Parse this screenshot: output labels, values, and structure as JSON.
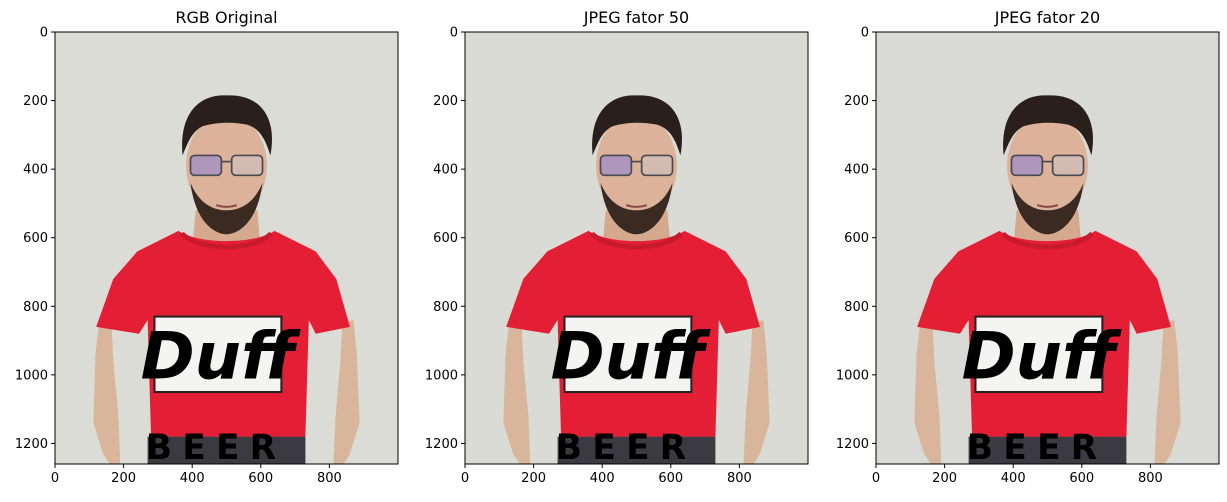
{
  "chart_data": [
    {
      "type": "image",
      "title": "RGB Original",
      "xlim": [
        0,
        1000
      ],
      "ylim": [
        1260,
        0
      ],
      "xticks": [
        0,
        200,
        400,
        600,
        800
      ],
      "yticks": [
        0,
        200,
        400,
        600,
        800,
        1000,
        1200
      ],
      "background": "#dcdcd6"
    },
    {
      "type": "image",
      "title": "JPEG fator 50",
      "xlim": [
        0,
        1000
      ],
      "ylim": [
        1260,
        0
      ],
      "xticks": [
        0,
        200,
        400,
        600,
        800
      ],
      "yticks": [
        0,
        200,
        400,
        600,
        800,
        1000,
        1200
      ],
      "background": "#dbdbd5"
    },
    {
      "type": "image",
      "title": "JPEG fator 20",
      "xlim": [
        0,
        1000
      ],
      "ylim": [
        1260,
        0
      ],
      "xticks": [
        0,
        200,
        400,
        600,
        800
      ],
      "yticks": [
        0,
        200,
        400,
        600,
        800,
        1000,
        1200
      ],
      "background": "#d9dad5"
    }
  ],
  "shirt": {
    "logo_text": "Duff",
    "beer_text": "BEER",
    "shirt_color": "#e41f35",
    "logo_box_color": "#f4f4f2",
    "ink_color": "#1b1414"
  }
}
